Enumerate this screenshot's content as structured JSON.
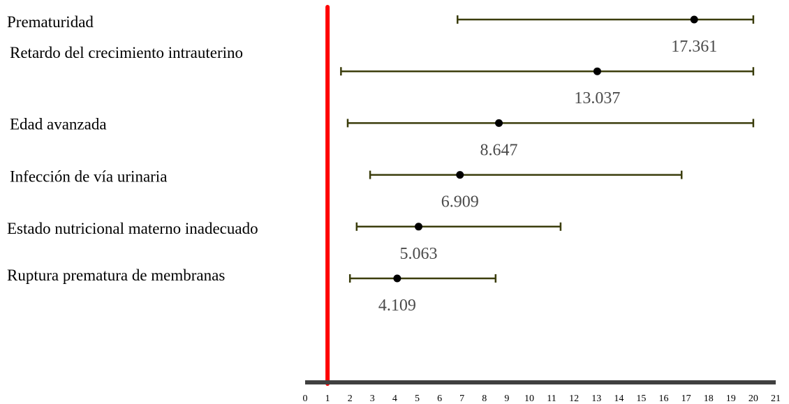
{
  "chart_data": {
    "type": "forest",
    "categories": [
      "Prematuridad",
      "Retardo del crecimiento intrauterino",
      "Edad avanzada",
      "Infección de vía urinaria",
      "Estado nutricional materno inadecuado",
      "Ruptura prematura de membranas"
    ],
    "estimates": [
      17.361,
      13.037,
      8.647,
      6.909,
      5.063,
      4.109
    ],
    "value_labels": [
      "17.361",
      "13.037",
      "8.647",
      "6.909",
      "5.063",
      "4.109"
    ],
    "lower": [
      6.8,
      1.6,
      1.9,
      2.9,
      2.3,
      2.0
    ],
    "upper": [
      20.0,
      20.0,
      20.0,
      16.8,
      11.4,
      8.5
    ],
    "reference_line": 1,
    "xlim": [
      0,
      21
    ],
    "xticks": [
      "0",
      "1",
      "2",
      "3",
      "4",
      "5",
      "6",
      "7",
      "8",
      "9",
      "10",
      "11",
      "12",
      "13",
      "14",
      "15",
      "16",
      "17",
      "18",
      "19",
      "20",
      "21"
    ],
    "colors": {
      "ci_line": "#3b3d0c",
      "point": "#000000",
      "reference_line": "#ff0000",
      "axis": "#404040"
    },
    "grid": false,
    "legend": "none"
  }
}
